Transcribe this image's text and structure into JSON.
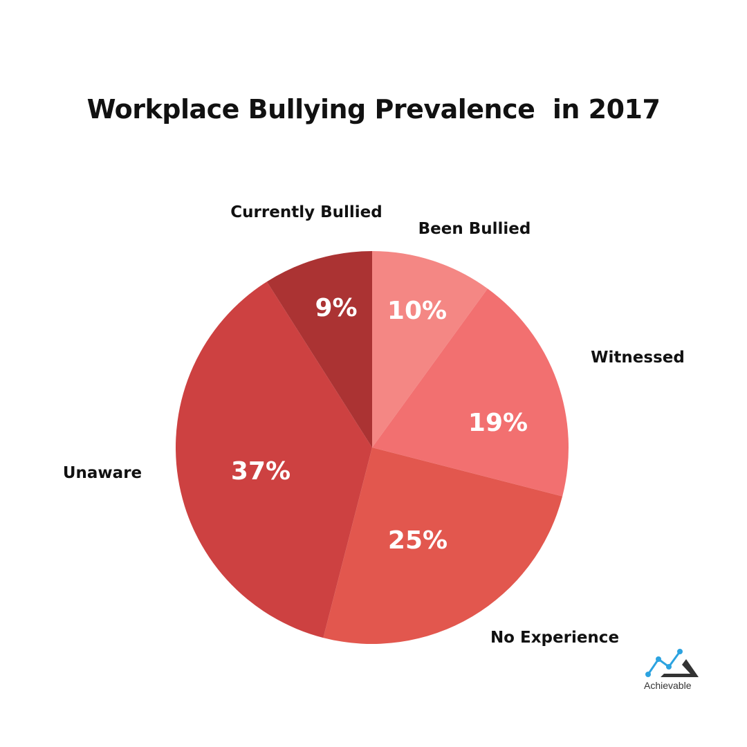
{
  "chart_data": {
    "type": "pie",
    "title": "Workplace Bullying Prevalence  in 2017",
    "start": "top",
    "direction": "clockwise",
    "slices": [
      {
        "label": "Been Bullied",
        "value": 10,
        "value_label": "10%",
        "color": "#F48784"
      },
      {
        "label": "Witnessed",
        "value": 19,
        "value_label": "19%",
        "color": "#F27070"
      },
      {
        "label": "No Experience",
        "value": 25,
        "value_label": "25%",
        "color": "#E2574E"
      },
      {
        "label": "Unaware",
        "value": 37,
        "value_label": "37%",
        "color": "#CD4141"
      },
      {
        "label": "Currently Bullied",
        "value": 9,
        "value_label": "9%",
        "color": "#AB3333"
      }
    ]
  },
  "brand": {
    "name": "Achievable",
    "line_color": "#2CA3E0",
    "mark_color": "#333333"
  }
}
